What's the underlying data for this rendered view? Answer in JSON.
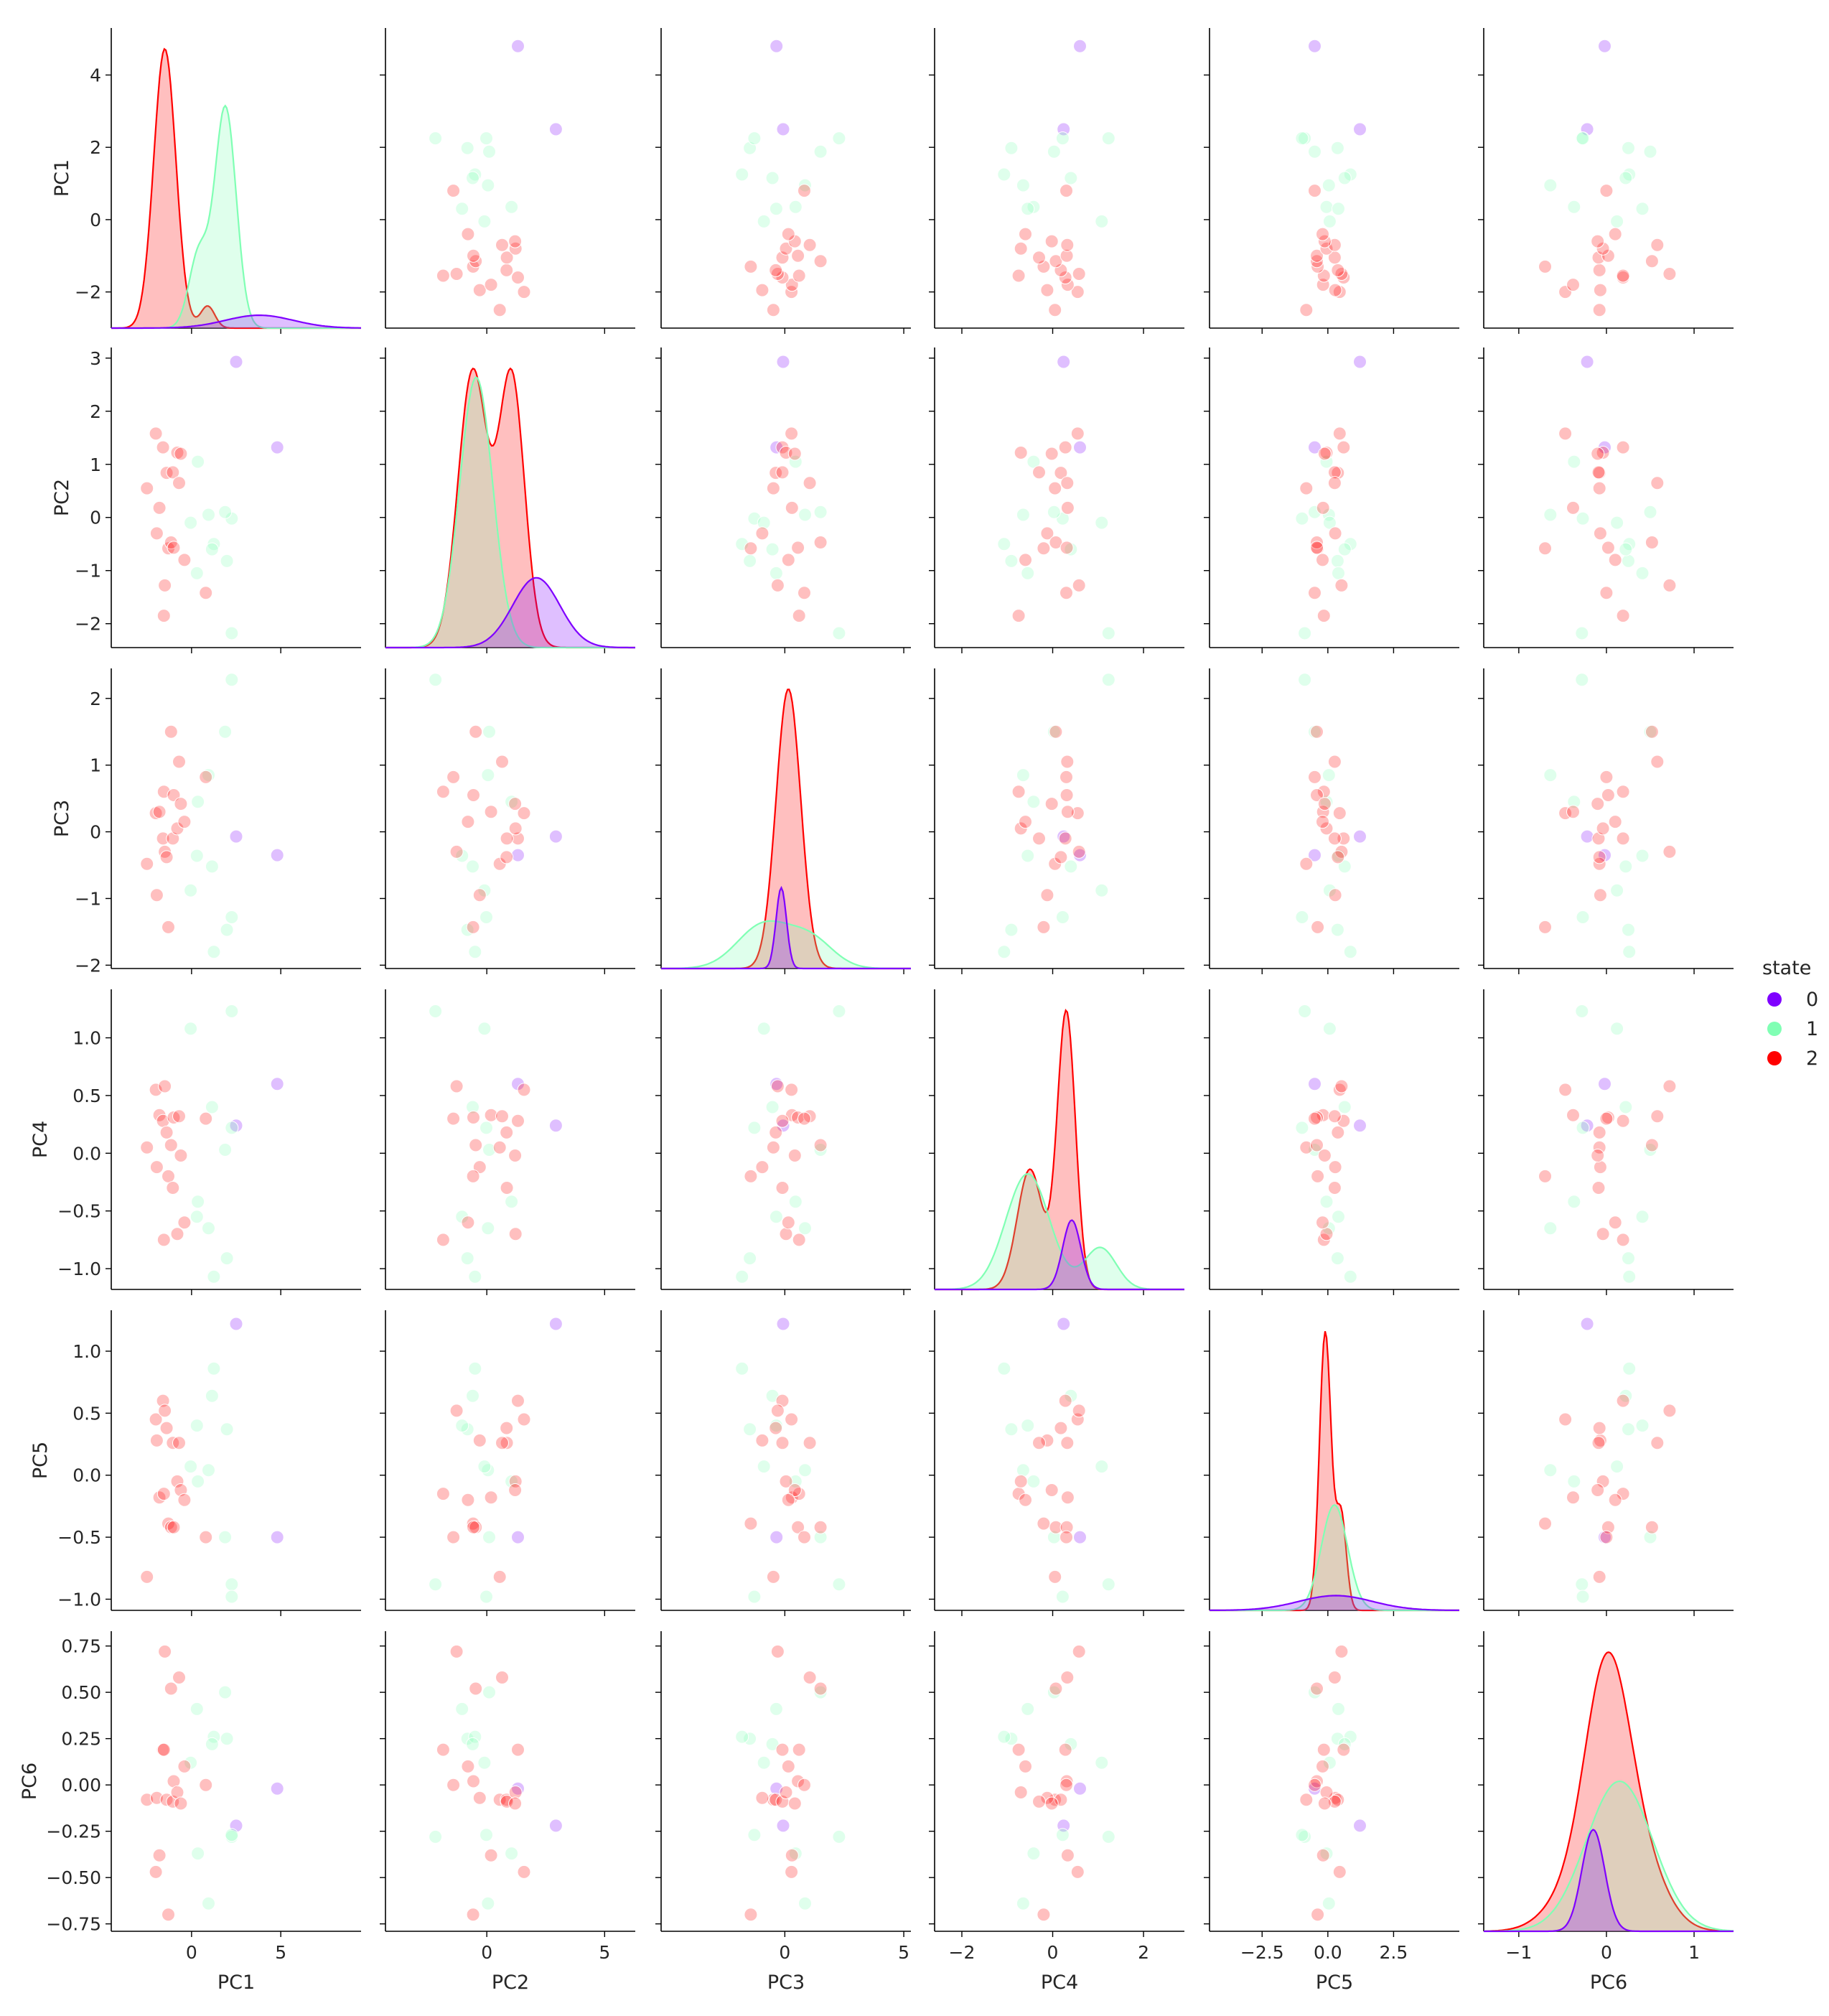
{
  "chart_data": {
    "type": "scatter",
    "variables": [
      "PC1",
      "PC2",
      "PC3",
      "PC4",
      "PC5",
      "PC6"
    ],
    "hue_variable": "state",
    "legend": {
      "title": "state",
      "position": "right",
      "entries": [
        {
          "label": "0",
          "color": "#7f00ff"
        },
        {
          "label": "1",
          "color": "#80ffb4"
        },
        {
          "label": "2",
          "color": "#ff0000"
        }
      ]
    },
    "axes": {
      "PC1": {
        "range": [
          -4.5,
          9.5
        ],
        "ticks": [
          0,
          5
        ],
        "tick_labels": [
          "0",
          "5"
        ],
        "row_range": [
          -3.0,
          5.3
        ],
        "row_ticks": [
          -2,
          0,
          2,
          4
        ],
        "row_tick_labels": [
          "−2",
          "0",
          "2",
          "4"
        ]
      },
      "PC2": {
        "range": [
          -4.3,
          6.3
        ],
        "ticks": [
          0,
          5
        ],
        "tick_labels": [
          "0",
          "5"
        ],
        "row_range": [
          -2.45,
          3.2
        ],
        "row_ticks": [
          -2,
          -1,
          0,
          1,
          2,
          3
        ],
        "row_tick_labels": [
          "−2",
          "−1",
          "0",
          "1",
          "2",
          "3"
        ]
      },
      "PC3": {
        "range": [
          -5.2,
          5.3
        ],
        "ticks": [
          0,
          5
        ],
        "tick_labels": [
          "0",
          "5"
        ],
        "row_range": [
          -2.05,
          2.45
        ],
        "row_ticks": [
          -2,
          -1,
          0,
          1,
          2
        ],
        "row_tick_labels": [
          "−2",
          "−1",
          "0",
          "1",
          "2"
        ]
      },
      "PC4": {
        "range": [
          -2.6,
          2.9
        ],
        "ticks": [
          -2,
          0,
          2
        ],
        "tick_labels": [
          "−2",
          "0",
          "2"
        ],
        "row_range": [
          -1.18,
          1.42
        ],
        "row_ticks": [
          -1.0,
          -0.5,
          0.0,
          0.5,
          1.0
        ],
        "row_tick_labels": [
          "−1.0",
          "−0.5",
          "0.0",
          "0.5",
          "1.0"
        ]
      },
      "PC5": {
        "range": [
          -4.5,
          5.0
        ],
        "ticks": [
          -2.5,
          0,
          2.5
        ],
        "tick_labels": [
          "−2.5",
          "0.0",
          "2.5"
        ],
        "row_range": [
          -1.09,
          1.33
        ],
        "row_ticks": [
          -1.0,
          -0.5,
          0.0,
          0.5,
          1.0
        ],
        "row_tick_labels": [
          "−1.0",
          "−0.5",
          "0.0",
          "0.5",
          "1.0"
        ]
      },
      "PC6": {
        "range": [
          -1.4,
          1.45
        ],
        "ticks": [
          -1,
          0,
          1
        ],
        "tick_labels": [
          "−1",
          "0",
          "1"
        ],
        "row_range": [
          -0.79,
          0.83
        ],
        "row_ticks": [
          -0.75,
          -0.5,
          -0.25,
          0.0,
          0.25,
          0.5,
          0.75
        ],
        "row_tick_labels": [
          "−0.75",
          "−0.50",
          "−0.25",
          "0.00",
          "0.25",
          "0.50",
          "0.75"
        ]
      }
    },
    "points": [
      {
        "state": 0,
        "PC1": 4.8,
        "PC2": 1.32,
        "PC3": -0.35,
        "PC4": 0.6,
        "PC5": -0.5,
        "PC6": -0.02
      },
      {
        "state": 0,
        "PC1": 2.5,
        "PC2": 2.93,
        "PC3": -0.07,
        "PC4": 0.24,
        "PC5": 1.22,
        "PC6": -0.22
      },
      {
        "state": 1,
        "PC1": 2.25,
        "PC2": -2.18,
        "PC3": 2.28,
        "PC4": 1.23,
        "PC5": -0.88,
        "PC6": -0.28
      },
      {
        "state": 1,
        "PC1": 1.98,
        "PC2": -0.82,
        "PC3": -1.47,
        "PC4": -0.91,
        "PC5": 0.37,
        "PC6": 0.25
      },
      {
        "state": 1,
        "PC1": 2.25,
        "PC2": -0.02,
        "PC3": -1.28,
        "PC4": 0.22,
        "PC5": -0.98,
        "PC6": -0.27
      },
      {
        "state": 1,
        "PC1": 1.88,
        "PC2": 0.1,
        "PC3": 1.5,
        "PC4": 0.03,
        "PC5": -0.5,
        "PC6": 0.5
      },
      {
        "state": 1,
        "PC1": 1.25,
        "PC2": -0.5,
        "PC3": -1.8,
        "PC4": -1.07,
        "PC5": 0.86,
        "PC6": 0.26
      },
      {
        "state": 1,
        "PC1": 0.95,
        "PC2": 0.05,
        "PC3": 0.85,
        "PC4": -0.65,
        "PC5": 0.04,
        "PC6": -0.64
      },
      {
        "state": 1,
        "PC1": 1.15,
        "PC2": -0.6,
        "PC3": -0.52,
        "PC4": 0.4,
        "PC5": 0.64,
        "PC6": 0.22
      },
      {
        "state": 1,
        "PC1": 0.35,
        "PC2": 1.05,
        "PC3": 0.45,
        "PC4": -0.42,
        "PC5": -0.05,
        "PC6": -0.37
      },
      {
        "state": 1,
        "PC1": -0.05,
        "PC2": -0.1,
        "PC3": -0.88,
        "PC4": 1.08,
        "PC5": 0.07,
        "PC6": 0.12
      },
      {
        "state": 1,
        "PC1": 0.3,
        "PC2": -1.05,
        "PC3": -0.36,
        "PC4": -0.55,
        "PC5": 0.4,
        "PC6": 0.41
      },
      {
        "state": 2,
        "PC1": -2.5,
        "PC2": 0.55,
        "PC3": -0.48,
        "PC4": 0.05,
        "PC5": -0.82,
        "PC6": -0.08
      },
      {
        "state": 2,
        "PC1": -2.0,
        "PC2": 1.58,
        "PC3": 0.28,
        "PC4": 0.55,
        "PC5": 0.45,
        "PC6": -0.47
      },
      {
        "state": 2,
        "PC1": -1.95,
        "PC2": -0.3,
        "PC3": -0.95,
        "PC4": -0.12,
        "PC5": 0.28,
        "PC6": -0.07
      },
      {
        "state": 2,
        "PC1": -1.8,
        "PC2": 0.18,
        "PC3": 0.3,
        "PC4": 0.33,
        "PC5": -0.18,
        "PC6": -0.38
      },
      {
        "state": 2,
        "PC1": -1.6,
        "PC2": 1.32,
        "PC3": -0.1,
        "PC4": 0.28,
        "PC5": 0.6,
        "PC6": 0.19
      },
      {
        "state": 2,
        "PC1": -1.5,
        "PC2": -1.28,
        "PC3": -0.3,
        "PC4": 0.58,
        "PC5": 0.52,
        "PC6": 0.72
      },
      {
        "state": 2,
        "PC1": -1.55,
        "PC2": -1.85,
        "PC3": 0.6,
        "PC4": -0.75,
        "PC5": -0.15,
        "PC6": 0.19
      },
      {
        "state": 2,
        "PC1": -1.4,
        "PC2": 0.84,
        "PC3": -0.38,
        "PC4": 0.18,
        "PC5": 0.38,
        "PC6": -0.08
      },
      {
        "state": 2,
        "PC1": -1.3,
        "PC2": -0.58,
        "PC3": -1.43,
        "PC4": -0.2,
        "PC5": -0.39,
        "PC6": -0.7
      },
      {
        "state": 2,
        "PC1": -1.15,
        "PC2": -0.47,
        "PC3": 1.5,
        "PC4": 0.07,
        "PC5": -0.42,
        "PC6": 0.52
      },
      {
        "state": 2,
        "PC1": -1.05,
        "PC2": 0.85,
        "PC3": -0.1,
        "PC4": -0.3,
        "PC5": 0.26,
        "PC6": -0.09
      },
      {
        "state": 2,
        "PC1": -1.0,
        "PC2": -0.57,
        "PC3": 0.55,
        "PC4": 0.31,
        "PC5": -0.42,
        "PC6": 0.02
      },
      {
        "state": 2,
        "PC1": -0.8,
        "PC2": 1.22,
        "PC3": 0.05,
        "PC4": -0.7,
        "PC5": -0.05,
        "PC6": -0.04
      },
      {
        "state": 2,
        "PC1": -0.7,
        "PC2": 0.65,
        "PC3": 1.05,
        "PC4": 0.32,
        "PC5": 0.26,
        "PC6": 0.58
      },
      {
        "state": 2,
        "PC1": -0.6,
        "PC2": 1.2,
        "PC3": 0.42,
        "PC4": -0.02,
        "PC5": -0.12,
        "PC6": -0.1
      },
      {
        "state": 2,
        "PC1": -0.4,
        "PC2": -0.8,
        "PC3": 0.15,
        "PC4": -0.6,
        "PC5": -0.2,
        "PC6": 0.1
      },
      {
        "state": 2,
        "PC1": 0.8,
        "PC2": -1.42,
        "PC3": 0.82,
        "PC4": 0.3,
        "PC5": -0.5,
        "PC6": 0.0
      }
    ],
    "kde": [
      {
        "var": "PC1",
        "state": 0,
        "peaks": [
          {
            "mu": 3.8,
            "sigma": 1.9,
            "height": 0.35
          }
        ]
      },
      {
        "var": "PC1",
        "state": 1,
        "peaks": [
          {
            "mu": 1.9,
            "sigma": 0.6,
            "height": 6.0
          },
          {
            "mu": 0.4,
            "sigma": 0.55,
            "height": 2.0
          }
        ]
      },
      {
        "var": "PC1",
        "state": 2,
        "peaks": [
          {
            "mu": -1.5,
            "sigma": 0.62,
            "height": 7.6
          },
          {
            "mu": 0.9,
            "sigma": 0.4,
            "height": 0.6
          }
        ]
      },
      {
        "var": "PC2",
        "state": 0,
        "peaks": [
          {
            "mu": 2.1,
            "sigma": 1.0,
            "height": 0.62
          }
        ]
      },
      {
        "var": "PC2",
        "state": 1,
        "peaks": [
          {
            "mu": -0.45,
            "sigma": 0.7,
            "height": 2.4
          }
        ]
      },
      {
        "var": "PC2",
        "state": 2,
        "peaks": [
          {
            "mu": -0.6,
            "sigma": 0.62,
            "height": 2.45
          },
          {
            "mu": 1.05,
            "sigma": 0.55,
            "height": 2.4
          }
        ]
      },
      {
        "var": "PC3",
        "state": 0,
        "peaks": [
          {
            "mu": -0.15,
            "sigma": 0.22,
            "height": 1.3
          }
        ]
      },
      {
        "var": "PC3",
        "state": 1,
        "peaks": [
          {
            "mu": -0.9,
            "sigma": 1.1,
            "height": 0.7
          },
          {
            "mu": 1.1,
            "sigma": 0.95,
            "height": 0.45
          }
        ]
      },
      {
        "var": "PC3",
        "state": 2,
        "peaks": [
          {
            "mu": 0.15,
            "sigma": 0.52,
            "height": 4.5
          }
        ]
      },
      {
        "var": "PC4",
        "state": 0,
        "peaks": [
          {
            "mu": 0.42,
            "sigma": 0.2,
            "height": 0.75
          }
        ]
      },
      {
        "var": "PC4",
        "state": 1,
        "peaks": [
          {
            "mu": -0.55,
            "sigma": 0.48,
            "height": 1.25
          },
          {
            "mu": 1.05,
            "sigma": 0.35,
            "height": 0.45
          }
        ]
      },
      {
        "var": "PC4",
        "state": 2,
        "peaks": [
          {
            "mu": 0.3,
            "sigma": 0.2,
            "height": 3.0
          },
          {
            "mu": -0.5,
            "sigma": 0.28,
            "height": 1.3
          }
        ]
      },
      {
        "var": "PC5",
        "state": 0,
        "peaks": [
          {
            "mu": 0.3,
            "sigma": 1.4,
            "height": 0.35
          }
        ]
      },
      {
        "var": "PC5",
        "state": 1,
        "peaks": [
          {
            "mu": 0.25,
            "sigma": 0.5,
            "height": 2.5
          }
        ]
      },
      {
        "var": "PC5",
        "state": 2,
        "peaks": [
          {
            "mu": -0.1,
            "sigma": 0.22,
            "height": 6.6
          },
          {
            "mu": 0.5,
            "sigma": 0.2,
            "height": 2.3
          }
        ]
      },
      {
        "var": "PC6",
        "state": 0,
        "peaks": [
          {
            "mu": -0.15,
            "sigma": 0.13,
            "height": 1.05
          }
        ]
      },
      {
        "var": "PC6",
        "state": 1,
        "peaks": [
          {
            "mu": 0.15,
            "sigma": 0.38,
            "height": 1.55
          }
        ]
      },
      {
        "var": "PC6",
        "state": 2,
        "peaks": [
          {
            "mu": 0.0,
            "sigma": 0.25,
            "height": 2.35
          },
          {
            "mu": 0.35,
            "sigma": 0.3,
            "height": 0.75
          },
          {
            "mu": -0.4,
            "sigma": 0.3,
            "height": 0.35
          }
        ]
      }
    ]
  }
}
